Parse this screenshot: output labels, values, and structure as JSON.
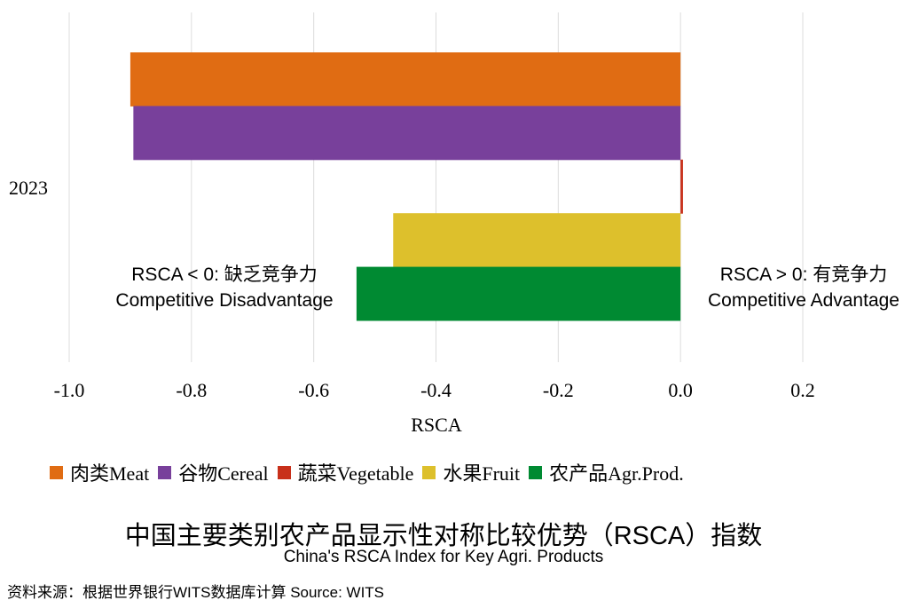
{
  "chart_data": {
    "type": "bar",
    "orientation": "horizontal",
    "category": "2023",
    "series": [
      {
        "name": "肉类Meat",
        "value": -0.9,
        "color": "#E06C13"
      },
      {
        "name": "谷物Cereal",
        "value": -0.895,
        "color": "#78409B"
      },
      {
        "name": "蔬菜Vegetable",
        "value": 0.004,
        "color": "#C8301A"
      },
      {
        "name": "水果Fruit",
        "value": -0.47,
        "color": "#DDC02C"
      },
      {
        "name": "农产品Agr.Prod.",
        "value": -0.53,
        "color": "#008A32"
      }
    ],
    "xlabel": "RSCA",
    "xlim": [
      -1.05,
      0.38
    ],
    "xticks": [
      "-1.0",
      "-0.8",
      "-0.6",
      "-0.4",
      "-0.2",
      "0.0",
      "0.2"
    ],
    "xtick_values": [
      -1.0,
      -0.8,
      -0.6,
      -0.4,
      -0.2,
      0.0,
      0.2
    ],
    "grid": true,
    "annotations": {
      "negative_line1": "RSCA < 0: 缺乏竞争力",
      "negative_line2": "Competitive Disadvantage",
      "positive_line1": "RSCA > 0: 有竞争力",
      "positive_line2": "Competitive Advantage"
    }
  },
  "title": "中国主要类别农产品显示性对称比较优势（RSCA）指数",
  "subtitle": "China's RSCA Index for Key Agri. Products",
  "source": "资料来源：根据世界银行WITS数据库计算  Source: WITS"
}
